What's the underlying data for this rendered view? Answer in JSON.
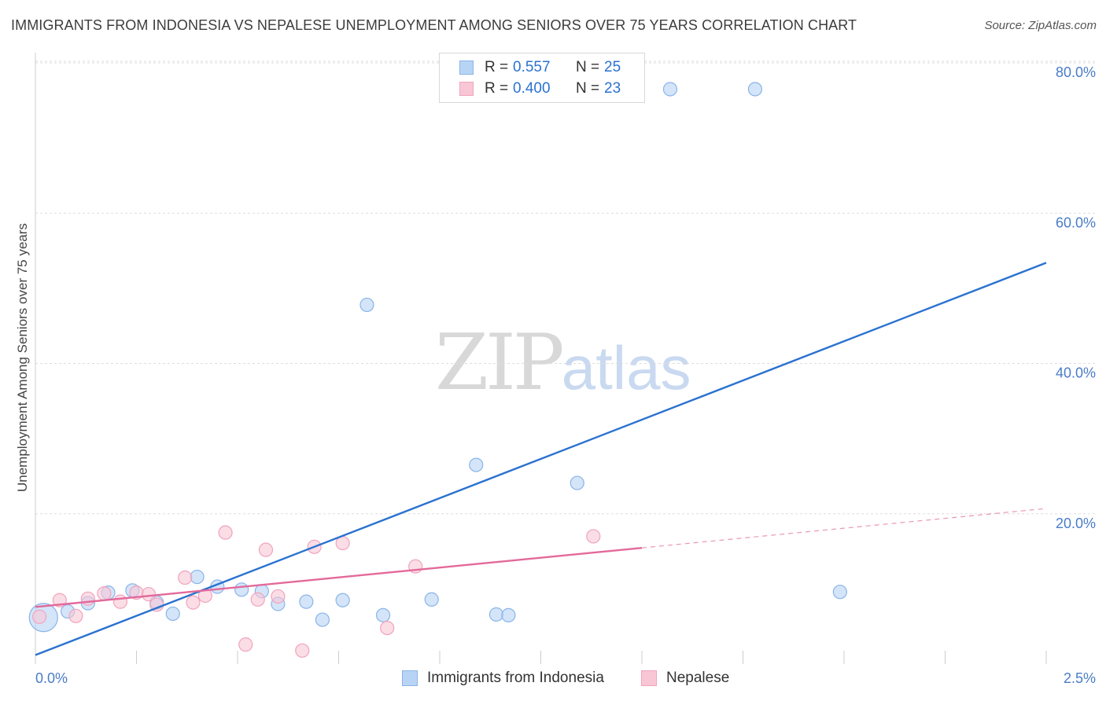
{
  "title": "IMMIGRANTS FROM INDONESIA VS NEPALESE UNEMPLOYMENT AMONG SENIORS OVER 75 YEARS CORRELATION CHART",
  "source": "Source: ZipAtlas.com",
  "watermark": {
    "zip": "ZIP",
    "atlas": "atlas"
  },
  "colors": {
    "blue_fill": "#b8d4f5",
    "blue_stroke": "#8ab4e8",
    "blue_line": "#2a72d0",
    "pink_fill": "#f9c6d6",
    "pink_stroke": "#f0a4bd",
    "pink_line": "#e3699a",
    "axis_text": "#4a7cc9",
    "grid": "#dddddd"
  },
  "legend": {
    "rows": [
      {
        "r_label": "R =",
        "r_value": "0.557",
        "n_label": "N =",
        "n_value": "25",
        "series": "blue"
      },
      {
        "r_label": "R =",
        "r_value": "0.400",
        "n_label": "N =",
        "n_value": "23",
        "series": "pink"
      }
    ]
  },
  "bottom_legend": [
    "Immigrants from Indonesia",
    "Nepalese"
  ],
  "chart_data": {
    "type": "scatter",
    "title": "IMMIGRANTS FROM INDONESIA VS NEPALESE UNEMPLOYMENT AMONG SENIORS OVER 75 YEARS CORRELATION CHART",
    "xlabel": "",
    "ylabel": "Unemployment Among Seniors over 75 years",
    "xlim": [
      0.0,
      2.5
    ],
    "ylim": [
      0,
      80
    ],
    "x_tick_labels": [
      "0.0%",
      "2.5%"
    ],
    "y_ticks": [
      20,
      40,
      60,
      80
    ],
    "y_tick_labels": [
      "20.0%",
      "40.0%",
      "60.0%",
      "80.0%"
    ],
    "grid": true,
    "series": [
      {
        "name": "Immigrants from Indonesia",
        "color": "blue",
        "points": [
          {
            "x": 0.02,
            "y": 6.2,
            "big": true
          },
          {
            "x": 0.08,
            "y": 7.0
          },
          {
            "x": 0.13,
            "y": 8.1
          },
          {
            "x": 0.18,
            "y": 9.5
          },
          {
            "x": 0.24,
            "y": 9.8
          },
          {
            "x": 0.3,
            "y": 8.2
          },
          {
            "x": 0.34,
            "y": 6.7
          },
          {
            "x": 0.4,
            "y": 11.6
          },
          {
            "x": 0.45,
            "y": 10.3
          },
          {
            "x": 0.51,
            "y": 9.9
          },
          {
            "x": 0.56,
            "y": 9.7
          },
          {
            "x": 0.6,
            "y": 8.0
          },
          {
            "x": 0.67,
            "y": 8.3
          },
          {
            "x": 0.71,
            "y": 5.9
          },
          {
            "x": 0.76,
            "y": 8.5
          },
          {
            "x": 0.82,
            "y": 47.8
          },
          {
            "x": 0.86,
            "y": 6.5
          },
          {
            "x": 0.98,
            "y": 8.6
          },
          {
            "x": 1.09,
            "y": 26.5
          },
          {
            "x": 1.14,
            "y": 6.6
          },
          {
            "x": 1.17,
            "y": 6.5
          },
          {
            "x": 1.34,
            "y": 24.1
          },
          {
            "x": 1.57,
            "y": 76.5
          },
          {
            "x": 1.78,
            "y": 76.5
          },
          {
            "x": 1.99,
            "y": 9.6
          }
        ],
        "trend": {
          "x0": 0.0,
          "y0": 1.2,
          "x1": 2.5,
          "y1": 53.4,
          "dashed_from": null
        }
      },
      {
        "name": "Nepalese",
        "color": "pink",
        "points": [
          {
            "x": 0.01,
            "y": 6.3
          },
          {
            "x": 0.06,
            "y": 8.5
          },
          {
            "x": 0.1,
            "y": 6.4
          },
          {
            "x": 0.13,
            "y": 8.7
          },
          {
            "x": 0.17,
            "y": 9.4
          },
          {
            "x": 0.21,
            "y": 8.3
          },
          {
            "x": 0.25,
            "y": 9.5
          },
          {
            "x": 0.28,
            "y": 9.3
          },
          {
            "x": 0.3,
            "y": 7.9
          },
          {
            "x": 0.37,
            "y": 11.5
          },
          {
            "x": 0.39,
            "y": 8.2
          },
          {
            "x": 0.42,
            "y": 9.1
          },
          {
            "x": 0.47,
            "y": 17.5
          },
          {
            "x": 0.52,
            "y": 2.6
          },
          {
            "x": 0.55,
            "y": 8.6
          },
          {
            "x": 0.57,
            "y": 15.2
          },
          {
            "x": 0.6,
            "y": 9.0
          },
          {
            "x": 0.66,
            "y": 1.8
          },
          {
            "x": 0.69,
            "y": 15.6
          },
          {
            "x": 0.76,
            "y": 16.1
          },
          {
            "x": 0.87,
            "y": 4.8
          },
          {
            "x": 0.94,
            "y": 13.0
          },
          {
            "x": 1.38,
            "y": 17.0
          }
        ],
        "trend": {
          "x0": 0.0,
          "y0": 7.6,
          "x1": 2.5,
          "y1": 20.7,
          "dashed_from": 1.5
        }
      }
    ]
  }
}
